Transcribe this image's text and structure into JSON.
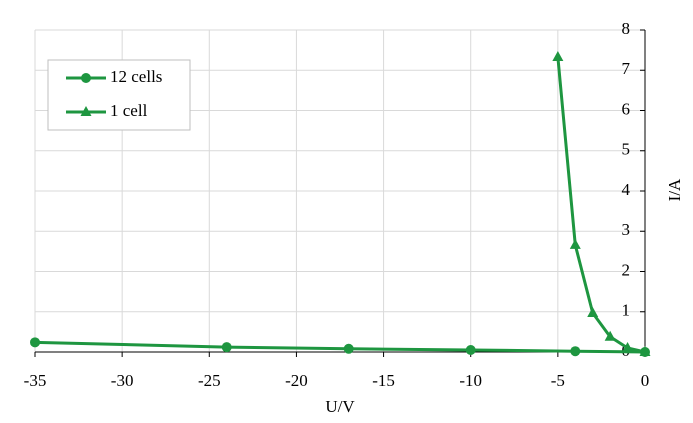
{
  "chart_data": {
    "type": "line",
    "xlabel": "U/V",
    "ylabel": "I/A",
    "xlim": [
      -35,
      0
    ],
    "xticks": [
      -35,
      -30,
      -25,
      -20,
      -15,
      -10,
      -5,
      0
    ],
    "ylim": [
      0,
      8
    ],
    "yticks": [
      0,
      1,
      2,
      3,
      4,
      5,
      6,
      7,
      8
    ],
    "grid": true,
    "legend": "upper left",
    "series": [
      {
        "name": "12 cells",
        "color": "#1e9640",
        "marker": "circle",
        "x": [
          -35,
          -24,
          -17,
          -10,
          -4,
          0
        ],
        "values": [
          0.24,
          0.12,
          0.08,
          0.05,
          0.02,
          0
        ]
      },
      {
        "name": "1 cell",
        "color": "#1e9640",
        "marker": "triangle",
        "x": [
          -5,
          -4,
          -3,
          -2,
          -1,
          0
        ],
        "values": [
          7.33,
          2.66,
          0.97,
          0.38,
          0.1,
          0
        ]
      }
    ]
  }
}
